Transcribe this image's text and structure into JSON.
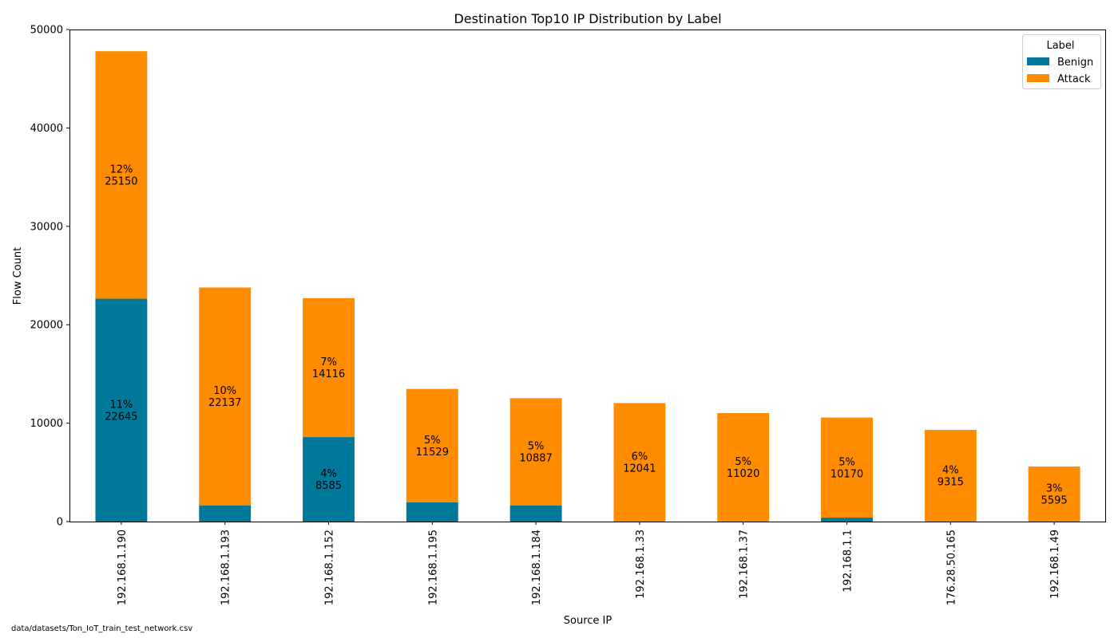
{
  "chart_data": {
    "type": "bar",
    "stacked": true,
    "title": "Destination Top10 IP Distribution by Label",
    "xlabel": "Source IP",
    "ylabel": "Flow Count",
    "ylim": [
      0,
      50000
    ],
    "yticks": [
      0,
      10000,
      20000,
      30000,
      40000,
      50000
    ],
    "grid": false,
    "categories": [
      "192.168.1.190",
      "192.168.1.193",
      "192.168.1.152",
      "192.168.1.195",
      "192.168.1.184",
      "192.168.1.33",
      "192.168.1.37",
      "192.168.1.1",
      "176.28.50.165",
      "192.168.1.49"
    ],
    "series": [
      {
        "name": "Benign",
        "color": "#00789a",
        "values": [
          22645,
          1650,
          8585,
          1950,
          1650,
          0,
          0,
          400,
          0,
          0
        ],
        "labels": [
          {
            "index": 0,
            "pct": "11%",
            "count": "22645"
          },
          {
            "index": 2,
            "pct": "4%",
            "count": "8585"
          }
        ]
      },
      {
        "name": "Attack",
        "color": "#ff8c00",
        "values": [
          25150,
          22137,
          14116,
          11529,
          10887,
          12041,
          11020,
          10170,
          9315,
          5595
        ],
        "labels": [
          {
            "index": 0,
            "pct": "12%",
            "count": "25150"
          },
          {
            "index": 1,
            "pct": "10%",
            "count": "22137"
          },
          {
            "index": 2,
            "pct": "7%",
            "count": "14116"
          },
          {
            "index": 3,
            "pct": "5%",
            "count": "11529"
          },
          {
            "index": 4,
            "pct": "5%",
            "count": "10887"
          },
          {
            "index": 5,
            "pct": "6%",
            "count": "12041"
          },
          {
            "index": 6,
            "pct": "5%",
            "count": "11020"
          },
          {
            "index": 7,
            "pct": "5%",
            "count": "10170"
          },
          {
            "index": 8,
            "pct": "4%",
            "count": "9315"
          },
          {
            "index": 9,
            "pct": "3%",
            "count": "5595"
          }
        ]
      }
    ],
    "legend": {
      "title": "Label",
      "placement": "top-right",
      "entries": [
        "Benign",
        "Attack"
      ]
    }
  },
  "footer": {
    "source_path": "data/datasets/Ton_IoT_train_test_network.csv"
  }
}
